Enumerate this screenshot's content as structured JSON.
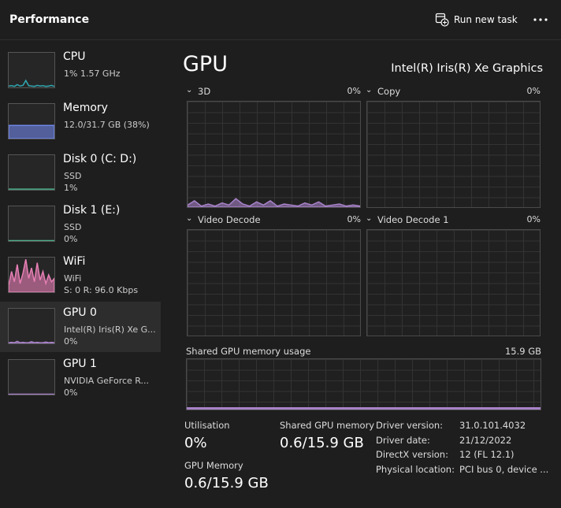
{
  "header": {
    "title": "Performance",
    "run_task": "Run new task"
  },
  "sidebar": {
    "items": [
      {
        "name": "CPU",
        "lines": [
          "1% 1.57 GHz"
        ]
      },
      {
        "name": "Memory",
        "lines": [
          "12.0/31.7 GB (38%)"
        ]
      },
      {
        "name": "Disk 0 (C: D:)",
        "lines": [
          "SSD",
          "1%"
        ]
      },
      {
        "name": "Disk 1 (E:)",
        "lines": [
          "SSD",
          "0%"
        ]
      },
      {
        "name": "WiFi",
        "lines": [
          "WiFi",
          "S: 0 R: 96.0 Kbps"
        ]
      },
      {
        "name": "GPU 0",
        "lines": [
          "Intel(R) Iris(R) Xe G...",
          "0%"
        ]
      },
      {
        "name": "GPU 1",
        "lines": [
          "NVIDIA GeForce R...",
          "0%"
        ]
      }
    ]
  },
  "main": {
    "title": "GPU",
    "device": "Intel(R) Iris(R) Xe Graphics",
    "engines": [
      {
        "name": "3D",
        "value": "0%"
      },
      {
        "name": "Copy",
        "value": "0%"
      },
      {
        "name": "Video Decode",
        "value": "0%"
      },
      {
        "name": "Video Decode 1",
        "value": "0%"
      }
    ],
    "shared_memory": {
      "label": "Shared GPU memory usage",
      "max": "15.9 GB"
    },
    "stats": [
      {
        "label": "Utilisation",
        "value": "0%"
      },
      {
        "label": "Shared GPU memory",
        "value": "0.6/15.9 GB"
      },
      {
        "label": "GPU Memory",
        "value": "0.6/15.9 GB"
      }
    ],
    "details": [
      {
        "label": "Driver version:",
        "value": "31.0.101.4032"
      },
      {
        "label": "Driver date:",
        "value": "21/12/2022"
      },
      {
        "label": "DirectX version:",
        "value": "12 (FL 12.1)"
      },
      {
        "label": "Physical location:",
        "value": "PCI bus 0, device ..."
      }
    ]
  }
}
